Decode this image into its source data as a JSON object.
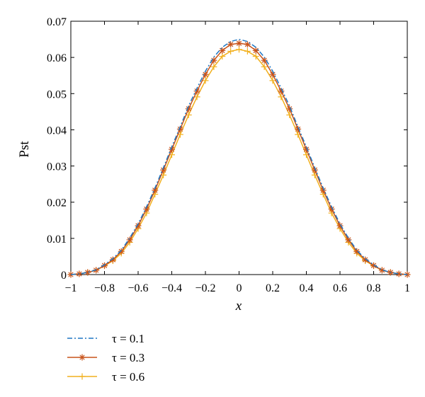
{
  "chart_data": {
    "type": "line",
    "title": "",
    "xlabel": "x",
    "ylabel": "Pst",
    "xlim": [
      -1,
      1
    ],
    "ylim": [
      0,
      0.07
    ],
    "x_ticks": [
      -1,
      -0.8,
      -0.6,
      -0.4,
      -0.2,
      0,
      0.2,
      0.4,
      0.6,
      0.8,
      1
    ],
    "x_tick_labels": [
      "−1",
      "−0.8",
      "−0.6",
      "−0.4",
      "−0.2",
      "0",
      "0.2",
      "0.4",
      "0.6",
      "0.8",
      "1"
    ],
    "y_ticks": [
      0,
      0.01,
      0.02,
      0.03,
      0.04,
      0.05,
      0.06,
      0.07
    ],
    "y_tick_labels": [
      "0",
      "0.01",
      "0.02",
      "0.03",
      "0.04",
      "0.05",
      "0.06",
      "0.07"
    ],
    "grid": false,
    "legend_position": "below-left",
    "x": [
      -1,
      -0.95,
      -0.9,
      -0.85,
      -0.8,
      -0.75,
      -0.7,
      -0.65,
      -0.6,
      -0.55,
      -0.5,
      -0.45,
      -0.4,
      -0.35,
      -0.3,
      -0.25,
      -0.2,
      -0.15,
      -0.1,
      -0.05,
      0,
      0.05,
      0.1,
      0.15,
      0.2,
      0.25,
      0.3,
      0.35,
      0.4,
      0.45,
      0.5,
      0.55,
      0.6,
      0.65,
      0.7,
      0.75,
      0.8,
      0.85,
      0.9,
      0.95,
      1
    ],
    "series": [
      {
        "name": "τ = 0.1",
        "color": "#1f77c4",
        "line_style": "dash-dot",
        "marker": "none",
        "values": [
          0.0,
          0.0002,
          0.0006,
          0.0013,
          0.0027,
          0.0044,
          0.0067,
          0.0101,
          0.014,
          0.0187,
          0.0239,
          0.0295,
          0.0353,
          0.0408,
          0.0466,
          0.0515,
          0.0562,
          0.0601,
          0.0628,
          0.0644,
          0.065,
          0.0644,
          0.0628,
          0.0601,
          0.0562,
          0.0515,
          0.0466,
          0.0408,
          0.0353,
          0.0295,
          0.0239,
          0.0187,
          0.014,
          0.0101,
          0.0067,
          0.0044,
          0.0027,
          0.0013,
          0.0006,
          0.0002,
          0.0
        ]
      },
      {
        "name": "τ = 0.3",
        "color": "#c8531a",
        "line_style": "solid",
        "marker": "asterisk",
        "values": [
          0.0,
          0.0002,
          0.0006,
          0.0012,
          0.0025,
          0.0041,
          0.0064,
          0.0096,
          0.0135,
          0.0181,
          0.0233,
          0.0289,
          0.0346,
          0.0402,
          0.0458,
          0.0507,
          0.0553,
          0.0592,
          0.0619,
          0.0636,
          0.0639,
          0.0636,
          0.0619,
          0.0592,
          0.0553,
          0.0507,
          0.0458,
          0.0402,
          0.0346,
          0.0289,
          0.0233,
          0.0181,
          0.0135,
          0.0096,
          0.0064,
          0.0041,
          0.0025,
          0.0012,
          0.0006,
          0.0002,
          0.0
        ]
      },
      {
        "name": "τ = 0.6",
        "color": "#f2b01e",
        "line_style": "solid",
        "marker": "plus",
        "values": [
          0.0,
          0.0002,
          0.0006,
          0.0012,
          0.0024,
          0.0038,
          0.0059,
          0.0089,
          0.0127,
          0.017,
          0.0222,
          0.0275,
          0.0331,
          0.0387,
          0.0441,
          0.0491,
          0.0536,
          0.0574,
          0.0603,
          0.0617,
          0.0622,
          0.0617,
          0.0603,
          0.0574,
          0.0536,
          0.0491,
          0.0441,
          0.0387,
          0.0331,
          0.0275,
          0.0222,
          0.017,
          0.0127,
          0.0089,
          0.0059,
          0.0038,
          0.0024,
          0.0012,
          0.0006,
          0.0002,
          0.0
        ]
      }
    ]
  }
}
